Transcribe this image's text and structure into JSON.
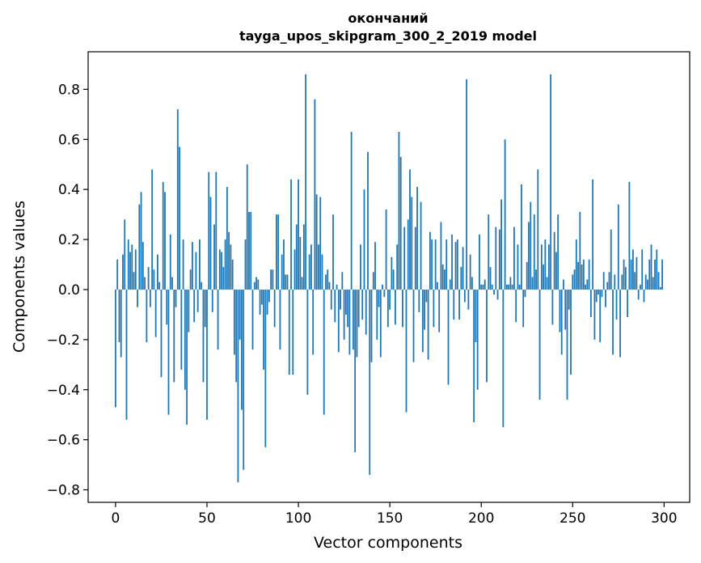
{
  "chart_data": {
    "type": "bar",
    "title_line1": "окончаний",
    "title_line2": "tayga_upos_skipgram_300_2_2019 model",
    "xlabel": "Vector components",
    "ylabel": "Components values",
    "xlim": [
      -15,
      314
    ],
    "ylim": [
      -0.85,
      0.95
    ],
    "xticks": [
      0,
      50,
      100,
      150,
      200,
      250,
      300
    ],
    "xtick_labels": [
      "0",
      "50",
      "100",
      "150",
      "200",
      "250",
      "300"
    ],
    "yticks": [
      -0.8,
      -0.6,
      -0.4,
      -0.2,
      0.0,
      0.2,
      0.4,
      0.6,
      0.8
    ],
    "ytick_labels": [
      "−0.8",
      "−0.6",
      "−0.4",
      "−0.2",
      "0.0",
      "0.2",
      "0.4",
      "0.6",
      "0.8"
    ],
    "bar_color": "#1f77b4",
    "values": [
      -0.47,
      0.12,
      -0.21,
      -0.27,
      0.14,
      0.28,
      -0.52,
      0.2,
      0.15,
      0.18,
      0.07,
      0.16,
      -0.07,
      0.34,
      0.39,
      0.19,
      0.05,
      -0.21,
      0.09,
      -0.07,
      0.48,
      0.08,
      -0.19,
      0.14,
      0.03,
      -0.35,
      0.43,
      0.39,
      -0.14,
      -0.5,
      0.22,
      0.05,
      -0.37,
      -0.07,
      0.72,
      0.57,
      -0.32,
      0.2,
      -0.4,
      -0.54,
      -0.17,
      0.08,
      0.19,
      -0.13,
      0.15,
      -0.09,
      0.2,
      0.03,
      -0.37,
      -0.15,
      -0.52,
      0.47,
      0.37,
      -0.09,
      0.26,
      0.47,
      -0.24,
      0.16,
      0.15,
      0.09,
      0.2,
      0.41,
      0.23,
      0.18,
      0.12,
      -0.26,
      -0.37,
      -0.77,
      -0.2,
      -0.48,
      -0.72,
      0.2,
      0.5,
      0.31,
      0.31,
      -0.24,
      0.03,
      0.05,
      0.04,
      -0.1,
      -0.06,
      -0.32,
      -0.63,
      -0.1,
      -0.05,
      0.08,
      0.08,
      -0.15,
      0.3,
      0.3,
      -0.24,
      0.14,
      0.2,
      0.06,
      0.06,
      -0.34,
      0.44,
      -0.34,
      0.16,
      0.26,
      0.44,
      0.21,
      0.05,
      0.26,
      0.86,
      -0.42,
      0.14,
      0.18,
      -0.26,
      0.76,
      0.38,
      0.18,
      0.37,
      0.14,
      -0.5,
      0.06,
      0.08,
      0.03,
      -0.08,
      0.3,
      -0.13,
      0.02,
      -0.25,
      -0.08,
      0.07,
      -0.2,
      -0.1,
      -0.15,
      -0.26,
      0.63,
      -0.24,
      -0.65,
      -0.27,
      -0.15,
      0.18,
      -0.12,
      0.4,
      -0.18,
      0.55,
      -0.74,
      -0.29,
      0.07,
      0.19,
      -0.2,
      -0.07,
      -0.27,
      0.02,
      -0.03,
      0.32,
      -0.15,
      -0.08,
      0.13,
      0.08,
      -0.14,
      0.18,
      0.63,
      0.53,
      -0.15,
      0.25,
      -0.49,
      0.28,
      0.48,
      0.37,
      -0.29,
      0.25,
      0.41,
      -0.09,
      0.35,
      -0.25,
      -0.16,
      -0.05,
      -0.28,
      0.23,
      0.2,
      -0.15,
      0.2,
      0.03,
      -0.17,
      0.27,
      0.1,
      0.08,
      0.2,
      -0.38,
      0.04,
      0.22,
      -0.12,
      0.19,
      0.2,
      -0.12,
      0.09,
      0.17,
      -0.05,
      0.84,
      -0.08,
      0.14,
      0.05,
      -0.53,
      -0.21,
      -0.4,
      0.22,
      0.02,
      0.02,
      0.04,
      -0.37,
      0.3,
      0.09,
      0.02,
      -0.02,
      0.25,
      -0.04,
      0.24,
      0.36,
      -0.55,
      0.6,
      0.02,
      0.02,
      0.05,
      0.02,
      0.25,
      -0.13,
      0.18,
      0.02,
      0.42,
      -0.15,
      -0.03,
      0.11,
      0.27,
      0.35,
      0.05,
      0.3,
      0.08,
      0.48,
      -0.44,
      0.18,
      0.1,
      0.2,
      0.05,
      0.18,
      0.86,
      -0.14,
      0.23,
      0.15,
      0.3,
      -0.17,
      -0.26,
      0.04,
      -0.16,
      -0.44,
      -0.08,
      -0.34,
      0.06,
      0.08,
      0.2,
      0.11,
      0.31,
      0.1,
      0.12,
      0.02,
      0.04,
      0.12,
      -0.11,
      0.44,
      -0.2,
      -0.05,
      -0.02,
      -0.21,
      -0.03,
      0.07,
      -0.07,
      0.03,
      0.07,
      0.24,
      -0.26,
      0.06,
      -0.12,
      0.34,
      -0.27,
      0.06,
      0.12,
      0.09,
      -0.11,
      0.43,
      0.12,
      0.16,
      0.07,
      0.13,
      -0.04,
      0.02,
      0.16,
      -0.05,
      0.06,
      0.04,
      0.12,
      0.18,
      0.05,
      0.12,
      0.16,
      0.07,
      0.01,
      0.12
    ]
  }
}
